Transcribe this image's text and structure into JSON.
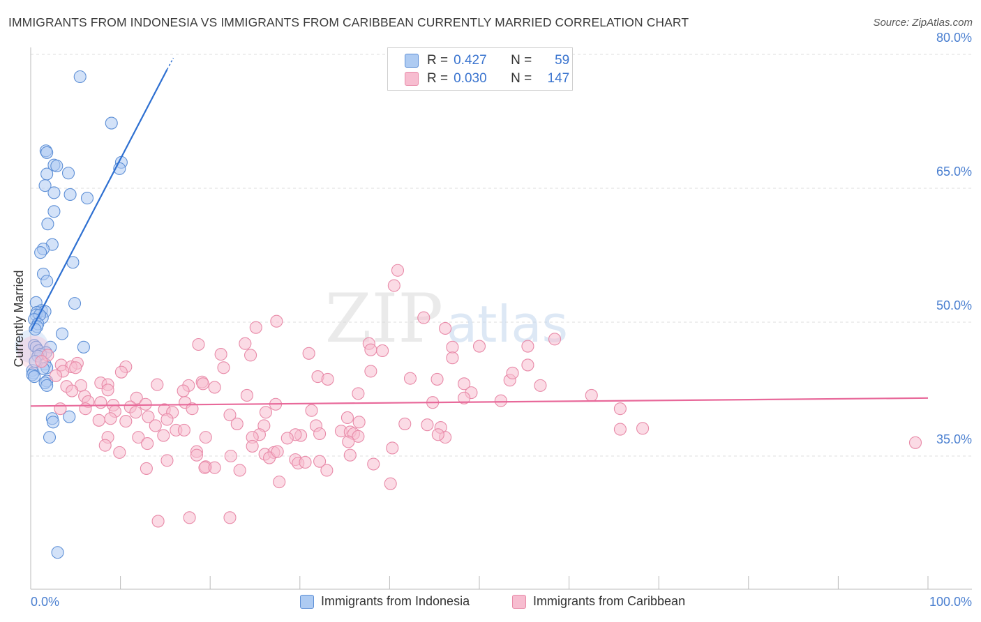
{
  "title": "IMMIGRANTS FROM INDONESIA VS IMMIGRANTS FROM CARIBBEAN CURRENTLY MARRIED CORRELATION CHART",
  "source": "Source: ZipAtlas.com",
  "colors": {
    "blue_fill": "#aecbf2",
    "blue_stroke": "#5d8fd6",
    "blue_line": "#2d6fd1",
    "pink_fill": "#f7bdd0",
    "pink_stroke": "#e88aa8",
    "pink_line": "#e8699a",
    "tick_blue": "#4a7fd0",
    "grid": "#dcdcdc"
  },
  "legend_top": [
    {
      "r_label": "R =",
      "r_value": "0.427",
      "n_label": "N =",
      "n_value": "59"
    },
    {
      "r_label": "R =",
      "r_value": "0.030",
      "n_label": "N =",
      "n_value": "147"
    }
  ],
  "chart_data": {
    "type": "scatter",
    "title": "IMMIGRANTS FROM INDONESIA VS IMMIGRANTS FROM CARIBBEAN CURRENTLY MARRIED CORRELATION CHART",
    "xlabel": "",
    "ylabel": "Currently Married",
    "xlim": [
      0,
      100
    ],
    "ylim": [
      20,
      83
    ],
    "x_tick_labels": [
      "0.0%",
      "100.0%"
    ],
    "y_ticks": [
      35,
      50,
      65,
      80
    ],
    "y_tick_labels": [
      "35.0%",
      "50.0%",
      "65.0%",
      "80.0%"
    ],
    "watermark": {
      "zip": "ZIP",
      "atlas": "atlas"
    },
    "series": [
      {
        "name": "Immigrants from Indonesia",
        "r": 0.427,
        "n": 59,
        "trend": {
          "x": [
            0,
            15.2
          ],
          "y": [
            49.0,
            78.3
          ],
          "dash_to": [
            15.9,
            79.6
          ]
        },
        "points": [
          [
            5.5,
            77.5
          ],
          [
            9.0,
            72.3
          ],
          [
            1.7,
            69.2
          ],
          [
            1.8,
            69.0
          ],
          [
            2.6,
            67.6
          ],
          [
            2.9,
            67.5
          ],
          [
            10.1,
            67.9
          ],
          [
            9.9,
            67.2
          ],
          [
            4.2,
            66.7
          ],
          [
            1.8,
            66.6
          ],
          [
            1.6,
            65.3
          ],
          [
            2.6,
            64.5
          ],
          [
            4.4,
            64.3
          ],
          [
            6.3,
            63.9
          ],
          [
            2.6,
            62.4
          ],
          [
            1.9,
            61.0
          ],
          [
            2.4,
            58.7
          ],
          [
            1.4,
            58.2
          ],
          [
            1.1,
            57.8
          ],
          [
            4.7,
            56.7
          ],
          [
            1.4,
            55.4
          ],
          [
            1.8,
            54.6
          ],
          [
            4.9,
            52.1
          ],
          [
            0.6,
            52.2
          ],
          [
            1.2,
            51.3
          ],
          [
            0.7,
            51.1
          ],
          [
            1.6,
            51.2
          ],
          [
            0.6,
            50.8
          ],
          [
            1.3,
            50.5
          ],
          [
            1.0,
            50.8
          ],
          [
            0.4,
            50.3
          ],
          [
            0.8,
            49.8
          ],
          [
            0.7,
            49.5
          ],
          [
            0.5,
            49.2
          ],
          [
            3.5,
            48.7
          ],
          [
            0.4,
            47.4
          ],
          [
            0.6,
            47.2
          ],
          [
            2.2,
            47.2
          ],
          [
            5.9,
            47.2
          ],
          [
            0.9,
            46.8
          ],
          [
            1.7,
            46.6
          ],
          [
            1.1,
            46.4
          ],
          [
            0.8,
            46.2
          ],
          [
            1.6,
            45.3
          ],
          [
            1.8,
            44.9
          ],
          [
            0.2,
            44.6
          ],
          [
            0.3,
            44.3
          ],
          [
            0.2,
            44.1
          ],
          [
            0.4,
            43.9
          ],
          [
            1.8,
            43.4
          ],
          [
            1.6,
            43.2
          ],
          [
            1.8,
            42.9
          ],
          [
            2.4,
            39.2
          ],
          [
            4.3,
            39.4
          ],
          [
            2.5,
            38.8
          ],
          [
            2.1,
            37.1
          ],
          [
            3.0,
            24.2
          ],
          [
            1.4,
            44.8
          ],
          [
            0.5,
            45.6
          ]
        ],
        "big_points": [
          [
            0.1,
            47.3
          ]
        ]
      },
      {
        "name": "Immigrants from Caribbean",
        "r": 0.03,
        "n": 147,
        "trend": {
          "x": [
            0,
            100
          ],
          "y": [
            40.6,
            41.5
          ]
        },
        "points": [
          [
            40.9,
            55.8
          ],
          [
            40.5,
            54.1
          ],
          [
            43.8,
            50.5
          ],
          [
            27.4,
            50.1
          ],
          [
            25.1,
            49.4
          ],
          [
            46.2,
            49.3
          ],
          [
            58.4,
            48.1
          ],
          [
            18.7,
            47.5
          ],
          [
            23.9,
            47.6
          ],
          [
            37.7,
            47.6
          ],
          [
            47.0,
            47.2
          ],
          [
            50.0,
            47.3
          ],
          [
            55.4,
            47.3
          ],
          [
            37.9,
            46.9
          ],
          [
            31.0,
            46.5
          ],
          [
            39.2,
            46.8
          ],
          [
            21.2,
            46.4
          ],
          [
            24.5,
            46.3
          ],
          [
            47.0,
            46.0
          ],
          [
            1.9,
            46.3
          ],
          [
            1.2,
            45.6
          ],
          [
            5.2,
            45.4
          ],
          [
            3.4,
            45.2
          ],
          [
            4.5,
            45.0
          ],
          [
            5.0,
            44.9
          ],
          [
            10.6,
            45.0
          ],
          [
            21.5,
            44.9
          ],
          [
            3.6,
            44.5
          ],
          [
            10.1,
            44.4
          ],
          [
            37.9,
            44.5
          ],
          [
            55.4,
            45.2
          ],
          [
            2.8,
            44.0
          ],
          [
            7.8,
            43.2
          ],
          [
            19.1,
            43.3
          ],
          [
            19.2,
            43.1
          ],
          [
            32.0,
            43.9
          ],
          [
            33.1,
            43.6
          ],
          [
            42.3,
            43.7
          ],
          [
            45.3,
            43.6
          ],
          [
            53.4,
            43.5
          ],
          [
            8.6,
            43.0
          ],
          [
            14.1,
            43.0
          ],
          [
            17.6,
            42.9
          ],
          [
            4.0,
            42.8
          ],
          [
            5.6,
            42.9
          ],
          [
            8.6,
            42.4
          ],
          [
            20.5,
            42.7
          ],
          [
            48.3,
            43.1
          ],
          [
            56.8,
            42.9
          ],
          [
            17.0,
            42.3
          ],
          [
            36.5,
            42.0
          ],
          [
            49.1,
            42.1
          ],
          [
            62.5,
            41.8
          ],
          [
            4.6,
            42.3
          ],
          [
            6.0,
            41.7
          ],
          [
            6.4,
            41.1
          ],
          [
            11.8,
            41.5
          ],
          [
            24.1,
            41.8
          ],
          [
            48.3,
            41.5
          ],
          [
            7.8,
            41.0
          ],
          [
            17.2,
            41.0
          ],
          [
            27.3,
            40.8
          ],
          [
            44.8,
            41.0
          ],
          [
            52.4,
            41.2
          ],
          [
            12.8,
            40.8
          ],
          [
            9.2,
            40.7
          ],
          [
            11.1,
            40.5
          ],
          [
            3.3,
            40.3
          ],
          [
            6.1,
            40.3
          ],
          [
            14.9,
            40.2
          ],
          [
            18.0,
            40.3
          ],
          [
            31.3,
            40.1
          ],
          [
            65.7,
            40.3
          ],
          [
            9.4,
            40.0
          ],
          [
            11.7,
            39.9
          ],
          [
            15.8,
            39.9
          ],
          [
            26.2,
            39.9
          ],
          [
            22.2,
            39.6
          ],
          [
            35.3,
            39.3
          ],
          [
            15.2,
            39.1
          ],
          [
            13.1,
            39.4
          ],
          [
            7.6,
            39.0
          ],
          [
            8.9,
            39.2
          ],
          [
            10.6,
            38.9
          ],
          [
            36.6,
            38.8
          ],
          [
            41.7,
            38.6
          ],
          [
            44.2,
            38.5
          ],
          [
            23.0,
            38.6
          ],
          [
            26.0,
            38.4
          ],
          [
            31.8,
            38.4
          ],
          [
            45.7,
            38.2
          ],
          [
            13.9,
            38.4
          ],
          [
            16.2,
            37.9
          ],
          [
            17.1,
            37.9
          ],
          [
            34.6,
            37.8
          ],
          [
            35.6,
            37.7
          ],
          [
            32.2,
            37.5
          ],
          [
            36.0,
            37.5
          ],
          [
            25.5,
            37.4
          ],
          [
            19.5,
            37.1
          ],
          [
            30.1,
            37.3
          ],
          [
            12.0,
            37.1
          ],
          [
            14.8,
            37.3
          ],
          [
            29.5,
            37.4
          ],
          [
            24.7,
            37.1
          ],
          [
            36.5,
            37.2
          ],
          [
            28.6,
            37.0
          ],
          [
            8.6,
            37.1
          ],
          [
            35.4,
            36.6
          ],
          [
            65.7,
            38.0
          ],
          [
            68.2,
            38.1
          ],
          [
            46.2,
            37.1
          ],
          [
            26.1,
            35.2
          ],
          [
            27.1,
            35.4
          ],
          [
            24.7,
            36.1
          ],
          [
            18.5,
            35.5
          ],
          [
            22.3,
            35.0
          ],
          [
            26.6,
            34.8
          ],
          [
            29.5,
            34.6
          ],
          [
            29.8,
            34.2
          ],
          [
            30.6,
            34.3
          ],
          [
            32.2,
            34.4
          ],
          [
            38.2,
            34.1
          ],
          [
            23.3,
            33.4
          ],
          [
            19.5,
            33.8
          ],
          [
            19.4,
            33.7
          ],
          [
            15.2,
            34.5
          ],
          [
            13.0,
            36.4
          ],
          [
            8.3,
            36.2
          ],
          [
            9.9,
            35.4
          ],
          [
            12.9,
            33.6
          ],
          [
            20.5,
            33.7
          ],
          [
            27.7,
            32.1
          ],
          [
            40.1,
            31.9
          ],
          [
            18.5,
            35.1
          ],
          [
            33.0,
            33.4
          ],
          [
            45.4,
            37.4
          ],
          [
            98.6,
            36.5
          ],
          [
            27.5,
            35.5
          ],
          [
            40.3,
            35.9
          ],
          [
            53.7,
            44.3
          ],
          [
            35.6,
            35.1
          ],
          [
            14.2,
            27.7
          ],
          [
            17.7,
            28.1
          ],
          [
            22.2,
            28.1
          ]
        ],
        "big_points": [
          [
            0.4,
            46.6
          ]
        ]
      }
    ]
  }
}
